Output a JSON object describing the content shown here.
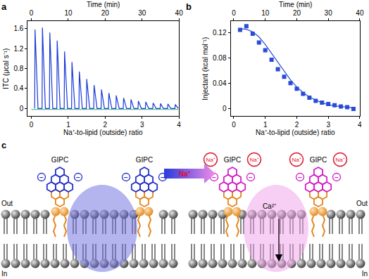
{
  "chart_data": [
    {
      "panel": "a",
      "type": "line",
      "x_label": "Na⁺-to-lipid (outside) ratio",
      "x2_label": "Time (min)",
      "y_label": "ITC (μcal s⁻¹)",
      "xlim": [
        -0.1,
        4.0
      ],
      "xticks": [
        0,
        1,
        2,
        3,
        4
      ],
      "x2lim": [
        -1,
        40
      ],
      "x2ticks": [
        0,
        10,
        20,
        30,
        40
      ],
      "ylim": [
        -0.15,
        1.75
      ],
      "yticks": [
        0,
        0.4,
        0.8,
        1.2,
        1.6
      ],
      "series": [
        {
          "color": "#1a3ad6",
          "x": [
            0.09,
            0.1,
            0.18,
            0.29,
            0.3,
            0.38,
            0.49,
            0.5,
            0.58,
            0.69,
            0.7,
            0.78,
            0.89,
            0.9,
            0.98,
            1.09,
            1.1,
            1.18,
            1.29,
            1.3,
            1.38,
            1.49,
            1.5,
            1.58,
            1.69,
            1.7,
            1.78,
            1.89,
            1.9,
            1.98,
            2.09,
            2.1,
            2.18,
            2.29,
            2.3,
            2.38,
            2.49,
            2.5,
            2.58,
            2.69,
            2.7,
            2.78,
            2.89,
            2.9,
            2.98,
            3.09,
            3.1,
            3.18,
            3.29,
            3.3,
            3.38,
            3.49,
            3.5,
            3.58,
            3.69,
            3.7,
            3.78,
            3.89,
            3.9,
            3.98
          ],
          "values": [
            0,
            1.58,
            0,
            0,
            1.62,
            0,
            0,
            1.52,
            0,
            0,
            1.36,
            0,
            0,
            1.14,
            0,
            0,
            0.93,
            0,
            0,
            0.74,
            0,
            0,
            0.59,
            0,
            0,
            0.47,
            0,
            0,
            0.38,
            0,
            0,
            0.31,
            0,
            0,
            0.26,
            0,
            0,
            0.21,
            0,
            0,
            0.18,
            0,
            0,
            0.15,
            0,
            0,
            0.13,
            0,
            0,
            0.11,
            0,
            0,
            0.1,
            0,
            0,
            0.09,
            0,
            0,
            0.08,
            0
          ]
        },
        {
          "color": "#3cb371",
          "x": [
            0,
            3.98
          ],
          "values": [
            -0.02,
            -0.02
          ]
        }
      ]
    },
    {
      "panel": "b",
      "type": "scatter",
      "x_label": "Na⁺-to-lipid (outside) ratio",
      "x2_label": "Time (min)",
      "y_label": "Injectant (kcal mol⁻¹)",
      "xlim": [
        -0.1,
        4.0
      ],
      "xticks": [
        0,
        1,
        2,
        3,
        4
      ],
      "x2lim": [
        -1,
        40
      ],
      "x2ticks": [
        0,
        10,
        20,
        30,
        40
      ],
      "ylim": [
        -0.012,
        0.138
      ],
      "yticks": [
        0,
        0.04,
        0.08,
        0.12
      ],
      "series": [
        {
          "type": "scatter",
          "marker": "square",
          "color": "#2a4bd7",
          "x": [
            0.2,
            0.4,
            0.6,
            0.8,
            1.0,
            1.2,
            1.4,
            1.6,
            1.8,
            2.0,
            2.2,
            2.4,
            2.6,
            2.8,
            3.0,
            3.2,
            3.4,
            3.6,
            3.8
          ],
          "values": [
            0.124,
            0.13,
            0.118,
            0.104,
            0.092,
            0.077,
            0.062,
            0.05,
            0.04,
            0.031,
            0.023,
            0.017,
            0.012,
            0.009,
            0.007,
            0.005,
            0.003,
            0.002,
            -0.001
          ]
        },
        {
          "type": "line",
          "color": "#2a4bd7",
          "x": [
            0.2,
            0.4,
            0.6,
            0.8,
            1.0,
            1.2,
            1.4,
            1.6,
            1.8,
            2.0,
            2.2,
            2.4,
            2.6,
            2.8,
            3.0,
            3.2,
            3.4,
            3.6,
            3.8
          ],
          "values": [
            0.126,
            0.125,
            0.121,
            0.113,
            0.101,
            0.087,
            0.072,
            0.058,
            0.045,
            0.034,
            0.025,
            0.018,
            0.013,
            0.009,
            0.006,
            0.004,
            0.003,
            0.002,
            0.001
          ]
        }
      ]
    }
  ],
  "diagram": {
    "panel": "c",
    "left": {
      "gipc": [
        "GIPC",
        "GIPC"
      ],
      "charge": "−",
      "out": "Out",
      "in": "In"
    },
    "arrow": "Na⁺",
    "right": {
      "gipc": [
        "GIPC",
        "GIPC"
      ],
      "charge": "−",
      "ions": [
        "Na⁺",
        "Na⁺",
        "Na⁺",
        "Na⁺"
      ],
      "flux": "Ca²⁺",
      "out": "Out",
      "in": "In"
    }
  }
}
